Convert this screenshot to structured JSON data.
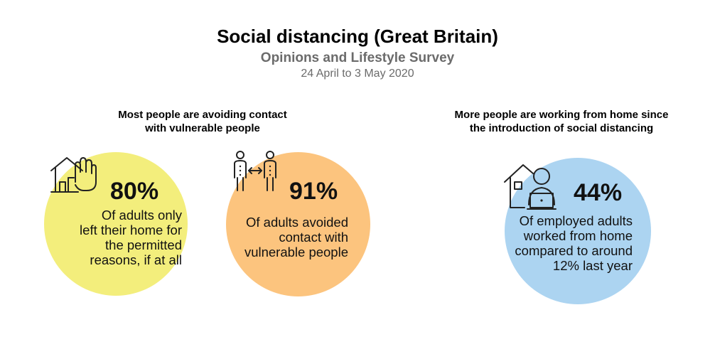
{
  "header": {
    "title": "Social distancing (Great Britain)",
    "subtitle": "Opinions and Lifestyle Survey",
    "dates": "24 April to 3 May 2020"
  },
  "sections": {
    "left_heading": "Most people are avoiding contact\nwith vulnerable people",
    "right_heading": "More people are working from home since\nthe introduction of social distancing"
  },
  "stats": [
    {
      "value": "80%",
      "description": "Of adults only\nleft their home for\nthe permitted\nreasons, if at all",
      "color": "#f3ee7c",
      "icon": "house-hand-icon"
    },
    {
      "value": "91%",
      "description": "Of adults avoided\ncontact with\nvulnerable people",
      "color": "#fcc47e",
      "icon": "people-distance-icon"
    },
    {
      "value": "44%",
      "description": "Of employed adults\nworked from home\ncompared to around\n12% last year",
      "color": "#acd4f1",
      "icon": "home-worker-icon"
    }
  ]
}
